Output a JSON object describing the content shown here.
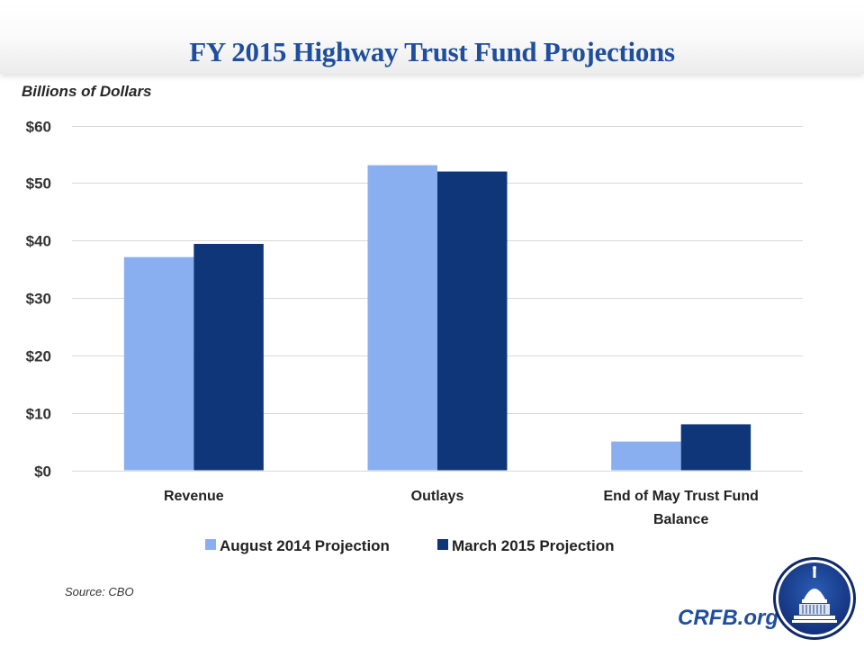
{
  "header": {
    "title": "FY 2015 Highway Trust Fund Projections"
  },
  "unit_label": "Billions of Dollars",
  "source": "Source: CBO",
  "brand": {
    "text": "CRFB.org",
    "logo": "capitol-dome-icon"
  },
  "colors": {
    "title": "#1f4e9c",
    "series1": "#8aaff0",
    "series2": "#0e3678",
    "grid": "#d9d9d9"
  },
  "chart_data": {
    "type": "bar",
    "title": "FY 2015 Highway Trust Fund Projections",
    "ylabel": "Billions of Dollars",
    "xlabel": "",
    "categories": [
      [
        "Revenue"
      ],
      [
        "Outlays"
      ],
      [
        "End of May Trust Fund",
        "Balance"
      ]
    ],
    "series": [
      {
        "name": "August 2014 Projection",
        "color": "#8aaff0",
        "values": [
          37.1,
          53.1,
          5.0
        ]
      },
      {
        "name": "March 2015 Projection",
        "color": "#0e3678",
        "values": [
          39.4,
          52.0,
          8.0
        ]
      }
    ],
    "ylim": [
      0,
      60
    ],
    "yticks": [
      0,
      10,
      20,
      30,
      40,
      50,
      60
    ],
    "ytick_labels": [
      "$0",
      "$10",
      "$20",
      "$30",
      "$40",
      "$50",
      "$60"
    ],
    "grid": true,
    "legend": "bottom-center"
  }
}
